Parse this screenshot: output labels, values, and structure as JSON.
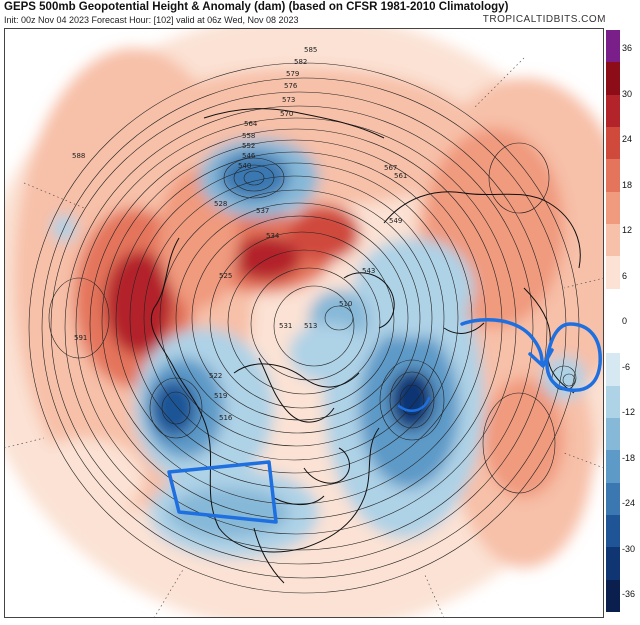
{
  "header": {
    "title": "GEPS 500mb Geopotential Height & Anomaly (dam) (based on CFSR 1981-2010 Climatology)",
    "subtitle": "Init: 00z Nov 04 2023   Forecast Hour: [102]   valid at 06z Wed, Nov 08 2023",
    "brand": "TROPICALTIDBITS.COM"
  },
  "colorbar": {
    "ticks": [
      "36",
      "30",
      "24",
      "18",
      "12",
      "6",
      "0",
      "-6",
      "-12",
      "-18",
      "-24",
      "-30",
      "-36"
    ],
    "colors_top_to_bottom": [
      "#7a1f8a",
      "#8c0d17",
      "#b3232a",
      "#d04a3c",
      "#e4745c",
      "#f09a7e",
      "#f7c0a8",
      "#fbe2d4",
      "#ffffff",
      "#ffffff",
      "#d6e8f2",
      "#aed2e6",
      "#86b8d8",
      "#5d9ac8",
      "#3b78b1",
      "#1f5596",
      "#0f3573",
      "#0a1f4d"
    ]
  },
  "contour_labels": [
    "585",
    "582",
    "579",
    "576",
    "573",
    "570",
    "564",
    "558",
    "552",
    "546",
    "540",
    "537",
    "534",
    "531",
    "528",
    "525",
    "522",
    "519",
    "516",
    "513",
    "510",
    "543",
    "549",
    "561",
    "567",
    "588",
    "591"
  ],
  "annotations": {
    "color": "#1e6fe0",
    "items": [
      "box-over-western-us",
      "arrow-to-circle",
      "circle-over-low"
    ]
  }
}
